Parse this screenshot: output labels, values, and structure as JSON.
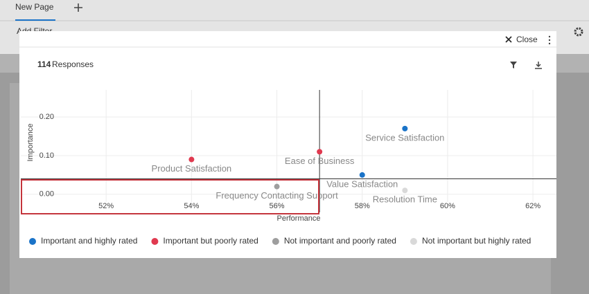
{
  "tab": "New Page",
  "add_filter": "Add Filter",
  "close": "Close",
  "responses_count": "114",
  "responses_label": "Responses",
  "chart_data": {
    "type": "scatter",
    "x_label": "Performance",
    "y_label": "Importance",
    "xlim": [
      50,
      62.55
    ],
    "ylim": [
      -0.02,
      0.27
    ],
    "xticks": [
      {
        "value": 52,
        "label": "52%"
      },
      {
        "value": 54,
        "label": "54%"
      },
      {
        "value": 56,
        "label": "56%"
      },
      {
        "value": 58,
        "label": "58%"
      },
      {
        "value": 60,
        "label": "60%"
      },
      {
        "value": 62,
        "label": "62%"
      }
    ],
    "yticks": [
      {
        "value": 0,
        "label": "0.00"
      },
      {
        "value": 0.1,
        "label": "0.10"
      },
      {
        "value": 0.2,
        "label": "0.20"
      }
    ],
    "grid": true,
    "xline": 57,
    "yline": 0.04,
    "legend": "bottom",
    "series": [
      {
        "name": "Important and highly rated",
        "color": "#1a73c8",
        "x": [
          59,
          58
        ],
        "values": [
          0.17,
          0.05
        ],
        "labels": [
          "Service Satisfaction",
          "Value Satisfaction"
        ]
      },
      {
        "name": "Important but poorly rated",
        "color": "#e0394f",
        "x": [
          54,
          57
        ],
        "values": [
          0.09,
          0.11
        ],
        "labels": [
          "Product Satisfaction",
          "Ease of Business"
        ]
      },
      {
        "name": "Not important and poorly rated",
        "color": "#9e9e9e",
        "x": [
          56
        ],
        "values": [
          0.02
        ],
        "labels": [
          "Frequency Contacting Support"
        ]
      },
      {
        "name": "Not important but highly rated",
        "color": "#d9d9d9",
        "x": [
          59
        ],
        "values": [
          0.01
        ],
        "labels": [
          "Resolution Time"
        ]
      }
    ]
  }
}
